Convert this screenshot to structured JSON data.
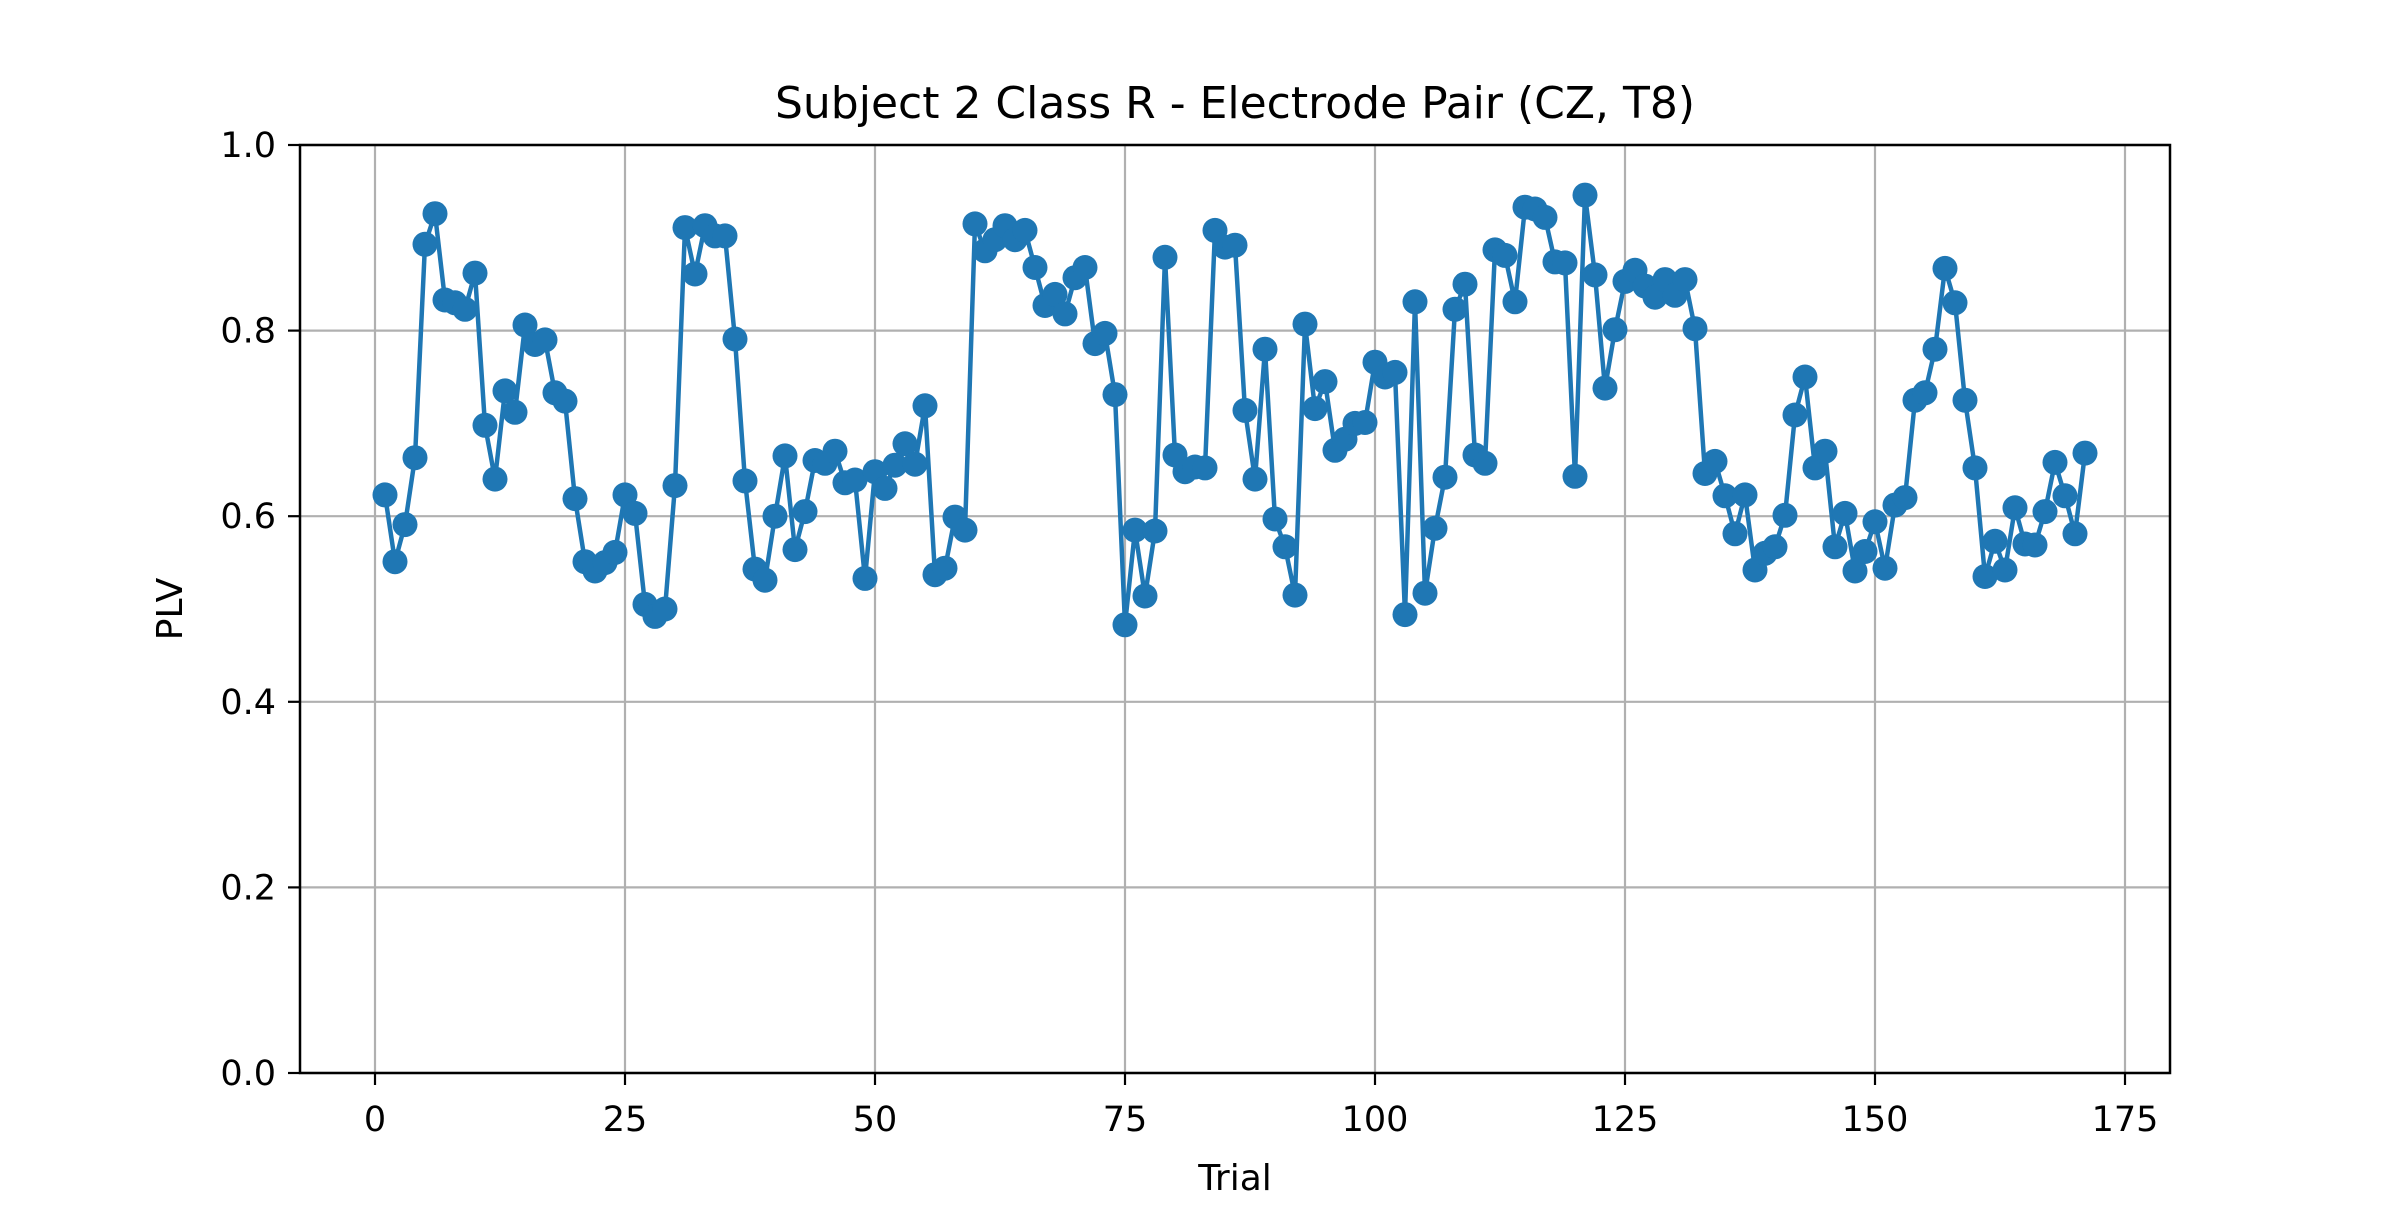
{
  "chart_data": {
    "type": "line",
    "title": "Subject 2 Class R - Electrode Pair (CZ, T8)",
    "xlabel": "Trial",
    "ylabel": "PLV",
    "xlim": [
      -7.5,
      179.5
    ],
    "ylim": [
      0.0,
      1.0
    ],
    "xticks": [
      0,
      25,
      50,
      75,
      100,
      125,
      150,
      175
    ],
    "yticks": [
      0.0,
      0.2,
      0.4,
      0.6,
      0.8,
      1.0
    ],
    "xtick_labels": [
      "0",
      "25",
      "50",
      "75",
      "100",
      "125",
      "150",
      "175"
    ],
    "ytick_labels": [
      "0.0",
      "0.2",
      "0.4",
      "0.6",
      "0.8",
      "1.0"
    ],
    "grid": true,
    "marker": "circle",
    "color": "#1f77b4",
    "series": [
      {
        "x": [
          1,
          2,
          3,
          4,
          5,
          6,
          7,
          8,
          9,
          10,
          11,
          12,
          13,
          14,
          15,
          16,
          17,
          18,
          19,
          20,
          21,
          22,
          23,
          24,
          25,
          26,
          27,
          28,
          29,
          30,
          31,
          32,
          33,
          34,
          35,
          36,
          37,
          38,
          39,
          40,
          41,
          42,
          43,
          44,
          45,
          46,
          47,
          48,
          49,
          50,
          51,
          52,
          53,
          54,
          55,
          56,
          57,
          58,
          59,
          60,
          61,
          62,
          63,
          64,
          65,
          66,
          67,
          68,
          69,
          70,
          71,
          72,
          73,
          74,
          75,
          76,
          77,
          78,
          79,
          80,
          81,
          82,
          83,
          84,
          85,
          86,
          87,
          88,
          89,
          90,
          91,
          92,
          93,
          94,
          95,
          96,
          97,
          98,
          99,
          100,
          101,
          102,
          103,
          104,
          105,
          106,
          107,
          108,
          109,
          110,
          111,
          112,
          113,
          114,
          115,
          116,
          117,
          118,
          119,
          120,
          121,
          122,
          123,
          124,
          125,
          126,
          127,
          128,
          129,
          130,
          131,
          132,
          133,
          134,
          135,
          136,
          137,
          138,
          139,
          140,
          141,
          142,
          143,
          144,
          145,
          146,
          147,
          148,
          149,
          150,
          151,
          152,
          153,
          154,
          155,
          156,
          157,
          158,
          159,
          160,
          161,
          162,
          163,
          164,
          165,
          166,
          167,
          168,
          169,
          170,
          171
        ],
        "y": [
          0.623,
          0.551,
          0.591,
          0.663,
          0.893,
          0.926,
          0.833,
          0.83,
          0.823,
          0.862,
          0.698,
          0.64,
          0.735,
          0.712,
          0.806,
          0.785,
          0.79,
          0.733,
          0.724,
          0.619,
          0.551,
          0.541,
          0.55,
          0.561,
          0.623,
          0.603,
          0.505,
          0.492,
          0.5,
          0.633,
          0.911,
          0.861,
          0.913,
          0.902,
          0.902,
          0.791,
          0.638,
          0.543,
          0.531,
          0.6,
          0.665,
          0.564,
          0.605,
          0.66,
          0.657,
          0.67,
          0.636,
          0.639,
          0.533,
          0.648,
          0.63,
          0.655,
          0.678,
          0.656,
          0.719,
          0.537,
          0.544,
          0.599,
          0.585,
          0.915,
          0.886,
          0.898,
          0.913,
          0.898,
          0.908,
          0.868,
          0.827,
          0.839,
          0.818,
          0.857,
          0.868,
          0.786,
          0.797,
          0.731,
          0.483,
          0.585,
          0.514,
          0.584,
          0.879,
          0.666,
          0.648,
          0.653,
          0.652,
          0.908,
          0.89,
          0.892,
          0.714,
          0.64,
          0.78,
          0.597,
          0.567,
          0.515,
          0.807,
          0.716,
          0.745,
          0.671,
          0.683,
          0.7,
          0.701,
          0.766,
          0.75,
          0.755,
          0.494,
          0.831,
          0.517,
          0.587,
          0.642,
          0.823,
          0.85,
          0.666,
          0.657,
          0.887,
          0.881,
          0.831,
          0.933,
          0.931,
          0.922,
          0.874,
          0.873,
          0.643,
          0.946,
          0.86,
          0.738,
          0.801,
          0.853,
          0.865,
          0.848,
          0.836,
          0.855,
          0.838,
          0.855,
          0.802,
          0.646,
          0.659,
          0.622,
          0.581,
          0.623,
          0.542,
          0.56,
          0.567,
          0.601,
          0.709,
          0.75,
          0.652,
          0.67,
          0.567,
          0.603,
          0.541,
          0.562,
          0.594,
          0.544,
          0.612,
          0.62,
          0.725,
          0.733,
          0.78,
          0.867,
          0.83,
          0.725,
          0.652,
          0.535,
          0.573,
          0.542,
          0.609,
          0.57,
          0.569,
          0.605,
          0.658,
          0.622,
          0.581,
          0.668
        ]
      }
    ]
  }
}
